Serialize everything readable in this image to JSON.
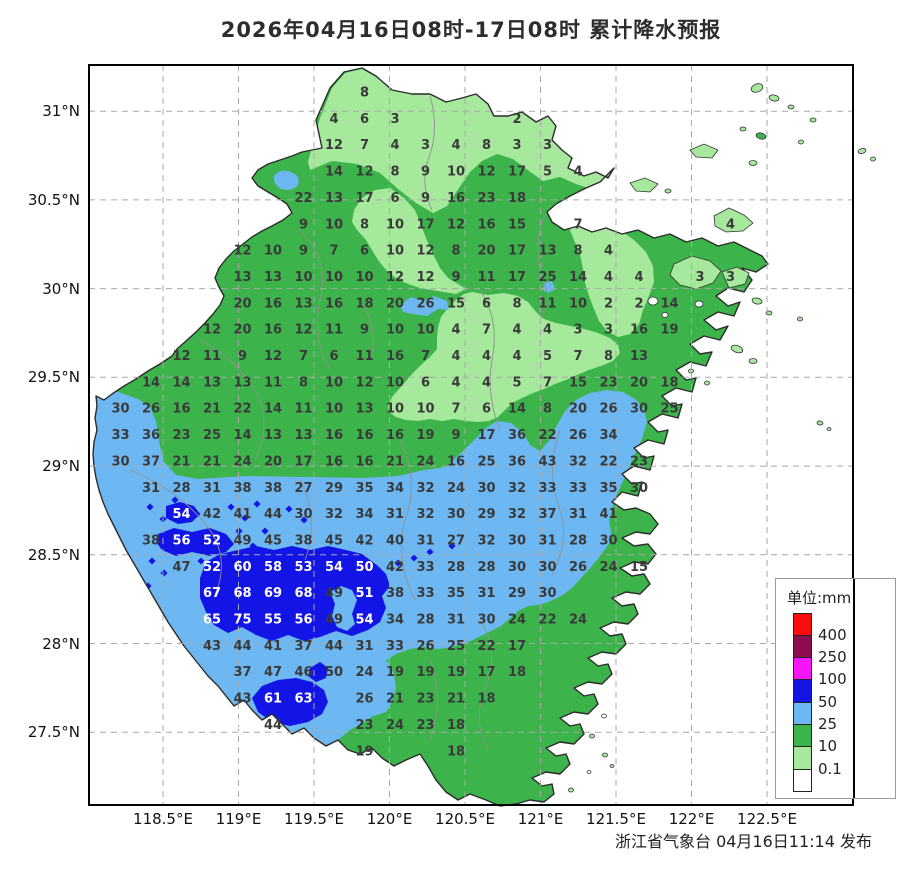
{
  "title": "2026年04月16日08时-17日08时 累计降水预报",
  "attribution": "浙江省气象台 04月16日11:14 发布",
  "legend": {
    "title": "单位:mm",
    "labels": [
      "400",
      "250",
      "100",
      "50",
      "25",
      "10",
      "0.1"
    ],
    "swatches": [
      "#fb0d0d",
      "#8c0d4d",
      "#f816f8",
      "#1315e6",
      "#6db8f3",
      "#3cb44b",
      "#a6e89c",
      "#ffffff"
    ]
  },
  "axes": {
    "lat": [
      "31°N",
      "30.5°N",
      "30°N",
      "29.5°N",
      "29°N",
      "28.5°N",
      "28°N",
      "27.5°N"
    ],
    "lon": [
      "118.5°E",
      "119°E",
      "119.5°E",
      "120°E",
      "120.5°E",
      "121°E",
      "121.5°E",
      "122°E",
      "122.5°E"
    ]
  },
  "colors": {
    "rain_400": "#fb0d0d",
    "rain_250_400": "#8c0d4d",
    "rain_100_250": "#f816f8",
    "rain_50_100": "#1315e6",
    "rain_25_50": "#6db8f3",
    "rain_10_25": "#3cb44b",
    "rain_01_10": "#a6e89c",
    "rain_none": "#ffffff",
    "boundary": "#2b2b2b",
    "grid": "#a9a9a9"
  },
  "chart_data": {
    "type": "heatmap",
    "title": "2026年04月16日08时-17日08时 累计降水预报",
    "unit": "mm",
    "x_ticks": [
      "118.5°E",
      "119°E",
      "119.5°E",
      "120°E",
      "120.5°E",
      "121°E",
      "121.5°E",
      "122°E",
      "122.5°E"
    ],
    "y_ticks": [
      "31°N",
      "30.5°N",
      "30°N",
      "29.5°N",
      "29°N",
      "28.5°N",
      "28°N",
      "27.5°N"
    ],
    "legend_thresholds": [
      0.1,
      10,
      25,
      50,
      100,
      250,
      400
    ],
    "values_note": "each item is [col,row,mm,whiteText?] on the station grid",
    "values": [
      [
        8,
        0,
        8
      ],
      [
        7,
        1,
        4
      ],
      [
        8,
        1,
        6
      ],
      [
        9,
        1,
        3
      ],
      [
        13,
        1,
        2
      ],
      [
        7,
        2,
        12
      ],
      [
        8,
        2,
        7
      ],
      [
        9,
        2,
        4
      ],
      [
        10,
        2,
        3
      ],
      [
        11,
        2,
        4
      ],
      [
        12,
        2,
        8
      ],
      [
        13,
        2,
        3
      ],
      [
        14,
        2,
        3
      ],
      [
        7,
        3,
        14
      ],
      [
        8,
        3,
        12
      ],
      [
        9,
        3,
        8
      ],
      [
        10,
        3,
        9
      ],
      [
        11,
        3,
        10
      ],
      [
        12,
        3,
        12
      ],
      [
        13,
        3,
        17
      ],
      [
        14,
        3,
        5
      ],
      [
        15,
        3,
        4
      ],
      [
        6,
        4,
        22
      ],
      [
        7,
        4,
        13
      ],
      [
        8,
        4,
        17
      ],
      [
        9,
        4,
        6
      ],
      [
        10,
        4,
        9
      ],
      [
        11,
        4,
        16
      ],
      [
        12,
        4,
        23
      ],
      [
        13,
        4,
        18
      ],
      [
        6,
        5,
        9
      ],
      [
        7,
        5,
        10
      ],
      [
        8,
        5,
        8
      ],
      [
        9,
        5,
        10
      ],
      [
        10,
        5,
        17
      ],
      [
        11,
        5,
        12
      ],
      [
        12,
        5,
        16
      ],
      [
        13,
        5,
        15
      ],
      [
        15,
        5,
        7
      ],
      [
        20,
        5,
        4
      ],
      [
        4,
        6,
        12
      ],
      [
        5,
        6,
        10
      ],
      [
        6,
        6,
        9
      ],
      [
        7,
        6,
        7
      ],
      [
        8,
        6,
        6
      ],
      [
        9,
        6,
        10
      ],
      [
        10,
        6,
        12
      ],
      [
        11,
        6,
        8
      ],
      [
        12,
        6,
        20
      ],
      [
        13,
        6,
        17
      ],
      [
        14,
        6,
        13
      ],
      [
        15,
        6,
        8
      ],
      [
        16,
        6,
        4
      ],
      [
        4,
        7,
        13
      ],
      [
        5,
        7,
        13
      ],
      [
        6,
        7,
        10
      ],
      [
        7,
        7,
        10
      ],
      [
        8,
        7,
        10
      ],
      [
        9,
        7,
        12
      ],
      [
        10,
        7,
        12
      ],
      [
        11,
        7,
        9
      ],
      [
        12,
        7,
        11
      ],
      [
        13,
        7,
        17
      ],
      [
        14,
        7,
        25
      ],
      [
        15,
        7,
        14
      ],
      [
        16,
        7,
        4
      ],
      [
        17,
        7,
        4
      ],
      [
        19,
        7,
        3
      ],
      [
        20,
        7,
        3
      ],
      [
        4,
        8,
        20
      ],
      [
        5,
        8,
        16
      ],
      [
        6,
        8,
        13
      ],
      [
        7,
        8,
        16
      ],
      [
        8,
        8,
        18
      ],
      [
        9,
        8,
        20
      ],
      [
        10,
        8,
        26
      ],
      [
        11,
        8,
        15
      ],
      [
        12,
        8,
        6
      ],
      [
        13,
        8,
        8
      ],
      [
        14,
        8,
        11
      ],
      [
        15,
        8,
        10
      ],
      [
        16,
        8,
        2
      ],
      [
        17,
        8,
        2
      ],
      [
        18,
        8,
        14
      ],
      [
        3,
        9,
        12
      ],
      [
        4,
        9,
        20
      ],
      [
        5,
        9,
        16
      ],
      [
        6,
        9,
        12
      ],
      [
        7,
        9,
        11
      ],
      [
        8,
        9,
        9
      ],
      [
        9,
        9,
        10
      ],
      [
        10,
        9,
        10
      ],
      [
        11,
        9,
        4
      ],
      [
        12,
        9,
        7
      ],
      [
        13,
        9,
        4
      ],
      [
        14,
        9,
        4
      ],
      [
        15,
        9,
        3
      ],
      [
        16,
        9,
        3
      ],
      [
        17,
        9,
        16
      ],
      [
        18,
        9,
        19
      ],
      [
        2,
        10,
        12
      ],
      [
        3,
        10,
        11
      ],
      [
        4,
        10,
        9
      ],
      [
        5,
        10,
        12
      ],
      [
        6,
        10,
        7
      ],
      [
        7,
        10,
        6
      ],
      [
        8,
        10,
        11
      ],
      [
        9,
        10,
        16
      ],
      [
        10,
        10,
        7
      ],
      [
        11,
        10,
        4
      ],
      [
        12,
        10,
        4
      ],
      [
        13,
        10,
        4
      ],
      [
        14,
        10,
        5
      ],
      [
        15,
        10,
        7
      ],
      [
        16,
        10,
        8
      ],
      [
        17,
        10,
        13
      ],
      [
        1,
        11,
        14
      ],
      [
        2,
        11,
        14
      ],
      [
        3,
        11,
        13
      ],
      [
        4,
        11,
        13
      ],
      [
        5,
        11,
        11
      ],
      [
        6,
        11,
        8
      ],
      [
        7,
        11,
        10
      ],
      [
        8,
        11,
        12
      ],
      [
        9,
        11,
        10
      ],
      [
        10,
        11,
        6
      ],
      [
        11,
        11,
        4
      ],
      [
        12,
        11,
        4
      ],
      [
        13,
        11,
        5
      ],
      [
        14,
        11,
        7
      ],
      [
        15,
        11,
        15
      ],
      [
        16,
        11,
        23
      ],
      [
        17,
        11,
        20
      ],
      [
        18,
        11,
        18
      ],
      [
        0,
        12,
        30
      ],
      [
        1,
        12,
        26
      ],
      [
        2,
        12,
        16
      ],
      [
        3,
        12,
        21
      ],
      [
        4,
        12,
        22
      ],
      [
        5,
        12,
        14
      ],
      [
        6,
        12,
        11
      ],
      [
        7,
        12,
        10
      ],
      [
        8,
        12,
        13
      ],
      [
        9,
        12,
        10
      ],
      [
        10,
        12,
        10
      ],
      [
        11,
        12,
        7
      ],
      [
        12,
        12,
        6
      ],
      [
        13,
        12,
        14
      ],
      [
        14,
        12,
        8
      ],
      [
        15,
        12,
        20
      ],
      [
        16,
        12,
        26
      ],
      [
        17,
        12,
        30
      ],
      [
        18,
        12,
        25
      ],
      [
        0,
        13,
        33
      ],
      [
        1,
        13,
        36
      ],
      [
        2,
        13,
        23
      ],
      [
        3,
        13,
        25
      ],
      [
        4,
        13,
        14
      ],
      [
        5,
        13,
        13
      ],
      [
        6,
        13,
        13
      ],
      [
        7,
        13,
        16
      ],
      [
        8,
        13,
        16
      ],
      [
        9,
        13,
        16
      ],
      [
        10,
        13,
        19
      ],
      [
        11,
        13,
        9
      ],
      [
        12,
        13,
        17
      ],
      [
        13,
        13,
        36
      ],
      [
        14,
        13,
        22
      ],
      [
        15,
        13,
        26
      ],
      [
        16,
        13,
        34
      ],
      [
        0,
        14,
        30
      ],
      [
        1,
        14,
        37
      ],
      [
        2,
        14,
        21
      ],
      [
        3,
        14,
        21
      ],
      [
        4,
        14,
        24
      ],
      [
        5,
        14,
        20
      ],
      [
        6,
        14,
        17
      ],
      [
        7,
        14,
        16
      ],
      [
        8,
        14,
        16
      ],
      [
        9,
        14,
        21
      ],
      [
        10,
        14,
        24
      ],
      [
        11,
        14,
        16
      ],
      [
        12,
        14,
        25
      ],
      [
        13,
        14,
        36
      ],
      [
        14,
        14,
        43
      ],
      [
        15,
        14,
        32
      ],
      [
        16,
        14,
        22
      ],
      [
        17,
        14,
        23
      ],
      [
        1,
        15,
        31
      ],
      [
        2,
        15,
        28
      ],
      [
        3,
        15,
        31
      ],
      [
        4,
        15,
        38
      ],
      [
        5,
        15,
        38
      ],
      [
        6,
        15,
        27
      ],
      [
        7,
        15,
        29
      ],
      [
        8,
        15,
        35
      ],
      [
        9,
        15,
        34
      ],
      [
        10,
        15,
        32
      ],
      [
        11,
        15,
        24
      ],
      [
        12,
        15,
        30
      ],
      [
        13,
        15,
        32
      ],
      [
        14,
        15,
        33
      ],
      [
        15,
        15,
        33
      ],
      [
        16,
        15,
        35
      ],
      [
        17,
        15,
        30
      ],
      [
        2,
        16,
        54,
        1
      ],
      [
        3,
        16,
        42
      ],
      [
        4,
        16,
        41
      ],
      [
        5,
        16,
        44
      ],
      [
        6,
        16,
        30
      ],
      [
        7,
        16,
        32
      ],
      [
        8,
        16,
        34
      ],
      [
        9,
        16,
        31
      ],
      [
        10,
        16,
        32
      ],
      [
        11,
        16,
        30
      ],
      [
        12,
        16,
        29
      ],
      [
        13,
        16,
        32
      ],
      [
        14,
        16,
        37
      ],
      [
        15,
        16,
        31
      ],
      [
        16,
        16,
        41
      ],
      [
        1,
        17,
        38
      ],
      [
        2,
        17,
        56,
        1
      ],
      [
        3,
        17,
        52,
        1
      ],
      [
        4,
        17,
        49
      ],
      [
        5,
        17,
        45
      ],
      [
        6,
        17,
        38
      ],
      [
        7,
        17,
        45
      ],
      [
        8,
        17,
        42
      ],
      [
        9,
        17,
        40
      ],
      [
        10,
        17,
        31
      ],
      [
        11,
        17,
        27
      ],
      [
        12,
        17,
        32
      ],
      [
        13,
        17,
        30
      ],
      [
        14,
        17,
        31
      ],
      [
        15,
        17,
        28
      ],
      [
        16,
        17,
        30
      ],
      [
        2,
        18,
        47
      ],
      [
        3,
        18,
        52,
        1
      ],
      [
        4,
        18,
        60,
        1
      ],
      [
        5,
        18,
        58,
        1
      ],
      [
        6,
        18,
        53,
        1
      ],
      [
        7,
        18,
        54,
        1
      ],
      [
        8,
        18,
        50,
        1
      ],
      [
        9,
        18,
        42
      ],
      [
        10,
        18,
        33
      ],
      [
        11,
        18,
        28
      ],
      [
        12,
        18,
        28
      ],
      [
        13,
        18,
        30
      ],
      [
        14,
        18,
        30
      ],
      [
        15,
        18,
        26
      ],
      [
        16,
        18,
        24
      ],
      [
        17,
        18,
        15
      ],
      [
        3,
        19,
        67,
        1
      ],
      [
        4,
        19,
        68,
        1
      ],
      [
        5,
        19,
        69,
        1
      ],
      [
        6,
        19,
        68,
        1
      ],
      [
        7,
        19,
        49
      ],
      [
        8,
        19,
        51,
        1
      ],
      [
        9,
        19,
        38
      ],
      [
        10,
        19,
        33
      ],
      [
        11,
        19,
        35
      ],
      [
        12,
        19,
        31
      ],
      [
        13,
        19,
        29
      ],
      [
        14,
        19,
        30
      ],
      [
        3,
        20,
        65,
        1
      ],
      [
        4,
        20,
        75,
        1
      ],
      [
        5,
        20,
        55,
        1
      ],
      [
        6,
        20,
        56,
        1
      ],
      [
        7,
        20,
        49
      ],
      [
        8,
        20,
        54,
        1
      ],
      [
        9,
        20,
        34
      ],
      [
        10,
        20,
        28
      ],
      [
        11,
        20,
        31
      ],
      [
        12,
        20,
        30
      ],
      [
        13,
        20,
        24
      ],
      [
        14,
        20,
        22
      ],
      [
        15,
        20,
        24
      ],
      [
        3,
        21,
        43
      ],
      [
        4,
        21,
        44
      ],
      [
        5,
        21,
        41
      ],
      [
        6,
        21,
        37
      ],
      [
        7,
        21,
        44
      ],
      [
        8,
        21,
        31
      ],
      [
        9,
        21,
        33
      ],
      [
        10,
        21,
        26
      ],
      [
        11,
        21,
        25
      ],
      [
        12,
        21,
        22
      ],
      [
        13,
        21,
        17
      ],
      [
        4,
        22,
        37
      ],
      [
        5,
        22,
        47
      ],
      [
        6,
        22,
        46
      ],
      [
        7,
        22,
        50
      ],
      [
        8,
        22,
        24
      ],
      [
        9,
        22,
        19
      ],
      [
        10,
        22,
        19
      ],
      [
        11,
        22,
        19
      ],
      [
        12,
        22,
        17
      ],
      [
        13,
        22,
        18
      ],
      [
        4,
        23,
        43
      ],
      [
        5,
        23,
        61,
        1
      ],
      [
        6,
        23,
        63,
        1
      ],
      [
        8,
        23,
        26
      ],
      [
        9,
        23,
        21
      ],
      [
        10,
        23,
        23
      ],
      [
        11,
        23,
        21
      ],
      [
        12,
        23,
        18
      ],
      [
        4,
        24,
        50,
        1
      ],
      [
        5,
        24,
        44
      ],
      [
        8,
        24,
        23
      ],
      [
        9,
        24,
        24
      ],
      [
        10,
        24,
        23
      ],
      [
        11,
        24,
        18
      ],
      [
        8,
        25,
        19
      ],
      [
        11,
        25,
        18
      ]
    ]
  }
}
